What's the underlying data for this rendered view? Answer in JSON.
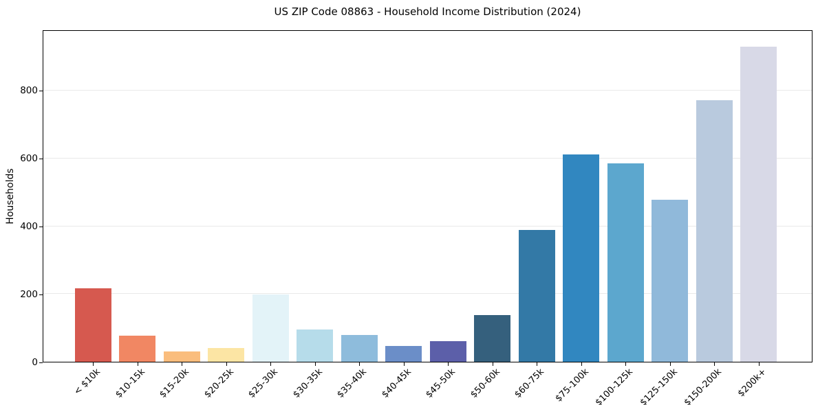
{
  "title": "US ZIP Code 08863 - Household Income Distribution (2024)",
  "chart_data": {
    "type": "bar",
    "title": "US ZIP Code 08863 - Household Income Distribution (2024)",
    "xlabel": "",
    "ylabel": "Households",
    "categories": [
      "< $10k",
      "$10-15k",
      "$15-20k",
      "$20-25k",
      "$25-30k",
      "$30-35k",
      "$35-40k",
      "$40-45k",
      "$45-50k",
      "$50-60k",
      "$60-75k",
      "$75-100k",
      "$100-125k",
      "$125-150k",
      "$150-200k",
      "$200k+"
    ],
    "values": [
      216,
      78,
      30,
      40,
      198,
      96,
      80,
      47,
      60,
      137,
      390,
      612,
      586,
      478,
      773,
      930
    ],
    "bar_colors": [
      "#d6594f",
      "#f18763",
      "#fabd7d",
      "#fce5a4",
      "#e3f3f8",
      "#b6dcea",
      "#8ebcdc",
      "#6b8ec8",
      "#5c5fa9",
      "#35607d",
      "#3379a6",
      "#3187c0",
      "#5ca7ce",
      "#90b9da",
      "#b9cade",
      "#d8d9e7"
    ],
    "ylim": [
      0,
      977
    ],
    "yticks": [
      0,
      200,
      400,
      600,
      800
    ],
    "ytick_labels": [
      "0",
      "200",
      "400",
      "600",
      "800"
    ],
    "grid": "horizontal",
    "grid_color": "#e9e9e9",
    "legend": "none",
    "plot_background": "#ffffff",
    "spine_color": "#000000"
  }
}
